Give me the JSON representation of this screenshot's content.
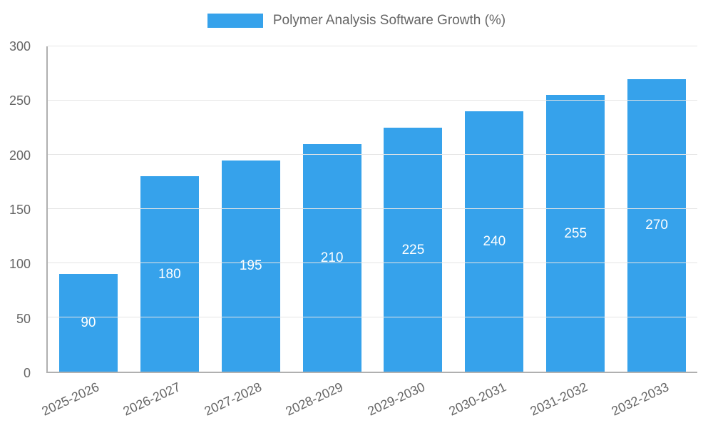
{
  "legend": {
    "label": "Polymer Analysis Software Growth (%)"
  },
  "chart_data": {
    "type": "bar",
    "title": "Polymer Analysis Software Growth (%)",
    "categories": [
      "2025-2026",
      "2026-2027",
      "2027-2028",
      "2028-2029",
      "2029-2030",
      "2030-2031",
      "2031-2032",
      "2032-2033"
    ],
    "values": [
      90,
      180,
      195,
      210,
      225,
      240,
      255,
      270
    ],
    "xlabel": "",
    "ylabel": "",
    "ylim": [
      0,
      300
    ],
    "yticks": [
      0,
      50,
      100,
      150,
      200,
      250,
      300
    ],
    "grid": true,
    "legend_position": "top",
    "colors": {
      "bar": "#36A2EB",
      "bar_label": "#FFFFFF",
      "axis_text": "#666666",
      "gridline": "#E5E5E5",
      "axis_line": "#B0B0B0"
    }
  }
}
